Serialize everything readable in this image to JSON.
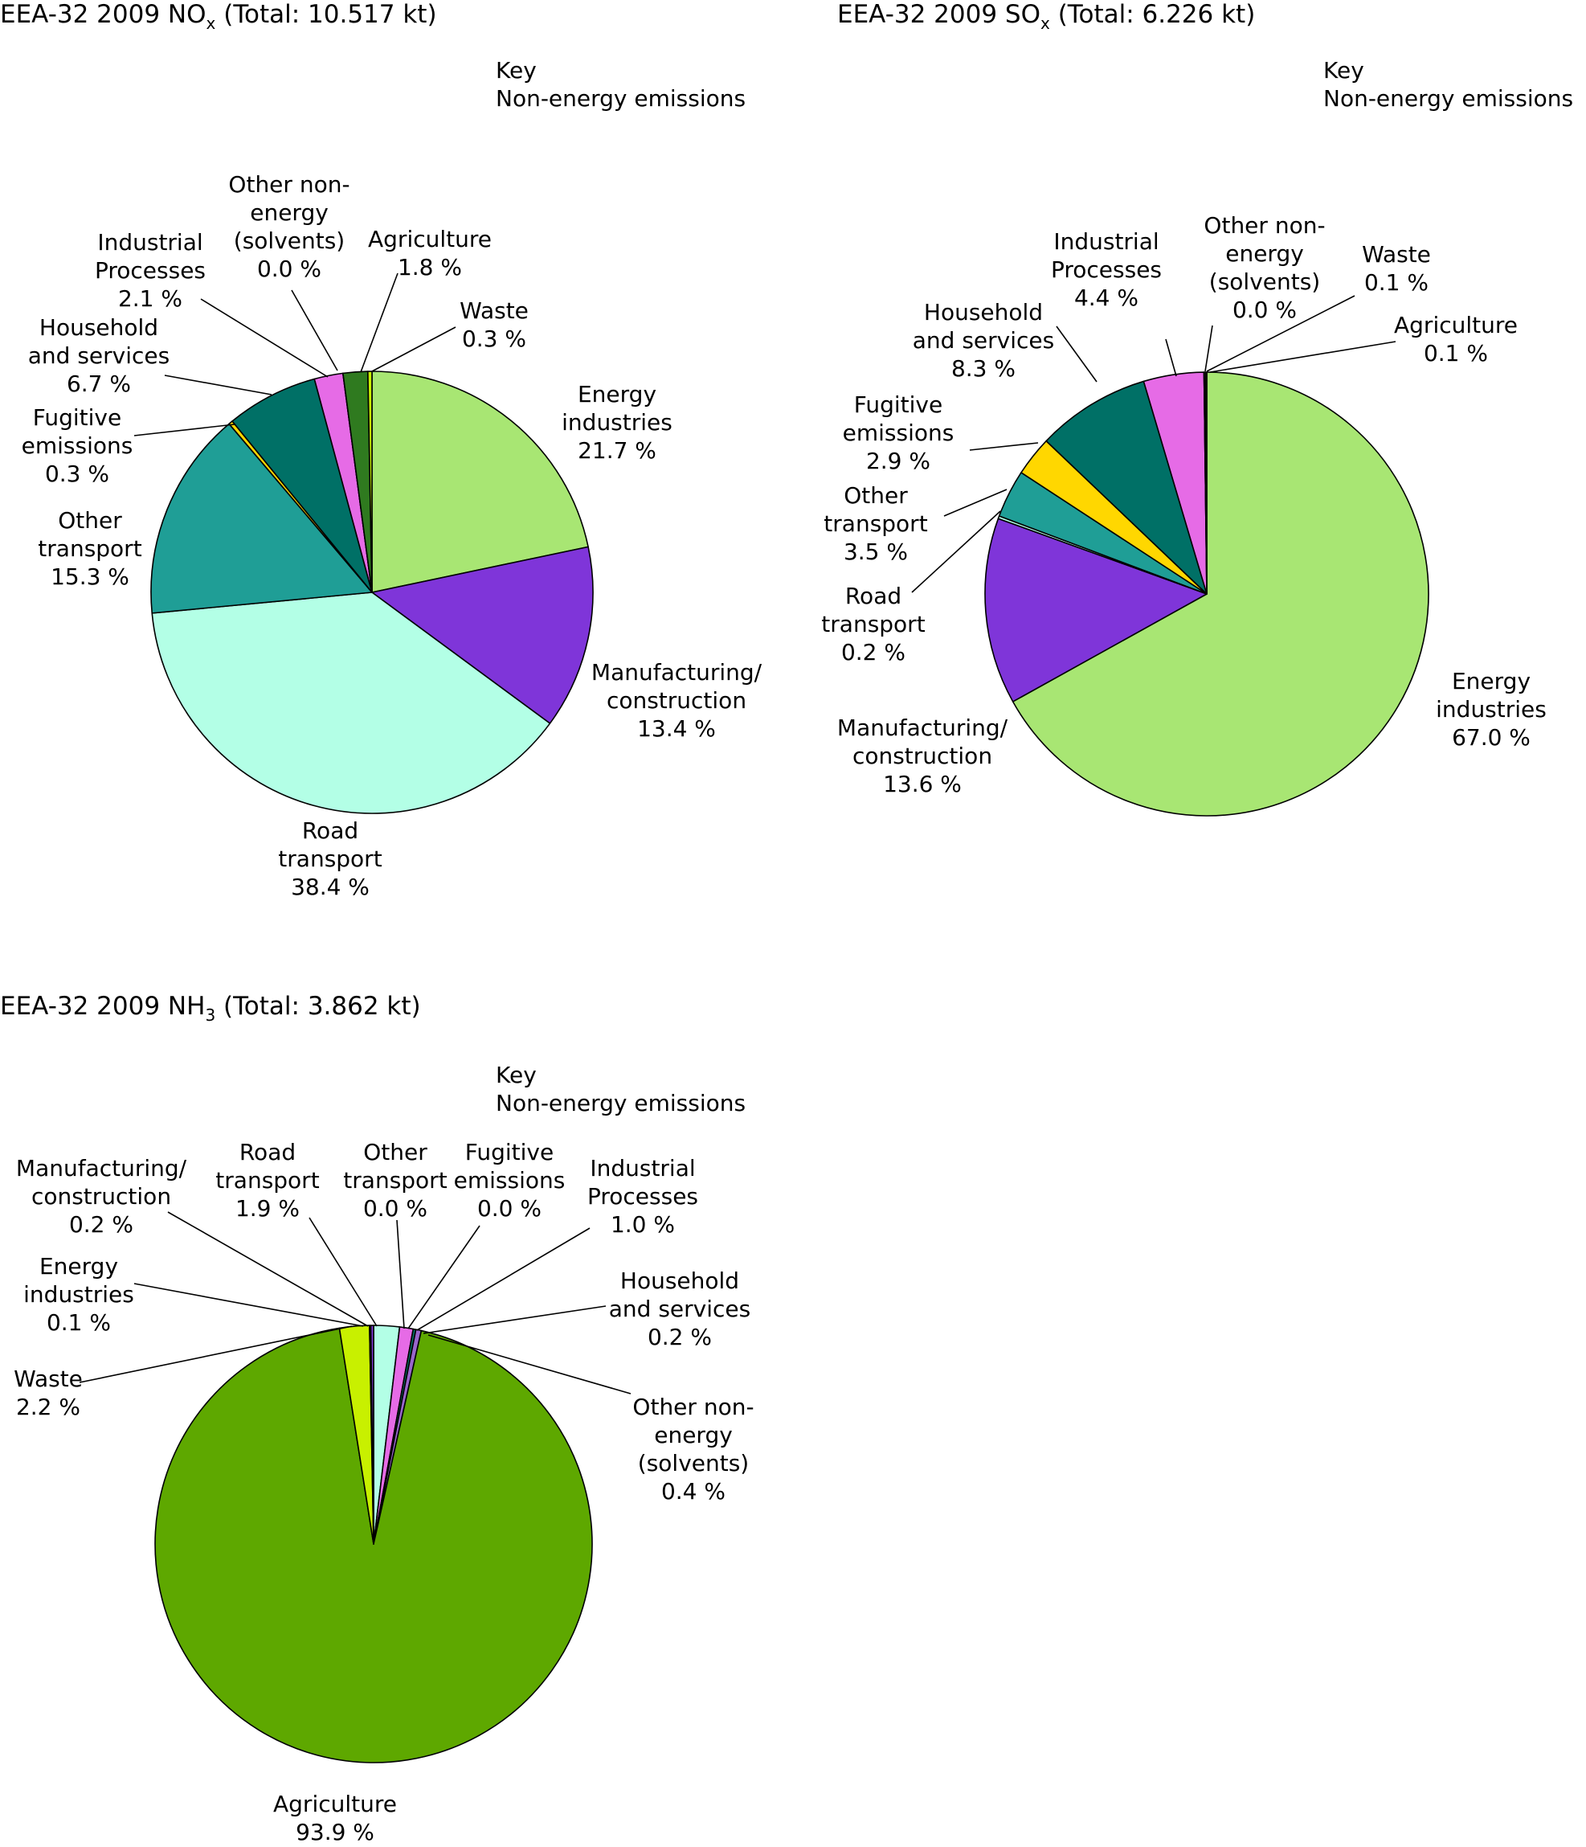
{
  "chart_data": [
    {
      "type": "pie",
      "title": "EEA-32 2009 NO",
      "title_subscript": "x",
      "title_total": "(Total: 10.517 kt)",
      "key_label": "Key",
      "key_text": "Non-energy emissions",
      "start": "12 o'clock, clockwise",
      "slices": [
        {
          "name": "Energy industries",
          "label": [
            "Energy",
            "industries"
          ],
          "value": 21.7,
          "pct": "21.7 %",
          "color": "#a8e673"
        },
        {
          "name": "Manufacturing/construction",
          "label": [
            "Manufacturing/",
            "construction"
          ],
          "value": 13.4,
          "pct": "13.4 %",
          "color": "#7f35d9"
        },
        {
          "name": "Road transport",
          "label": [
            "Road",
            "transport"
          ],
          "value": 38.4,
          "pct": "38.4 %",
          "color": "#b3ffe6"
        },
        {
          "name": "Other transport",
          "label": [
            "Other",
            "transport"
          ],
          "value": 15.3,
          "pct": "15.3 %",
          "color": "#1f9e96"
        },
        {
          "name": "Fugitive emissions",
          "label": [
            "Fugitive",
            "emissions"
          ],
          "value": 0.3,
          "pct": "0.3 %",
          "color": "#ffd700"
        },
        {
          "name": "Household and services",
          "label": [
            "Household",
            "and services"
          ],
          "value": 6.7,
          "pct": "6.7 %",
          "color": "#007066"
        },
        {
          "name": "Industrial Processes",
          "label": [
            "Industrial",
            "Processes"
          ],
          "value": 2.1,
          "pct": "2.1 %",
          "color": "#e66be6"
        },
        {
          "name": "Other non-energy (solvents)",
          "label": [
            "Other non-",
            "energy",
            "(solvents)"
          ],
          "value": 0.0,
          "pct": "0.0 %",
          "color": "#9966cc"
        },
        {
          "name": "Agriculture",
          "label": [
            "Agriculture"
          ],
          "value": 1.8,
          "pct": "1.8 %",
          "color": "#2f7a1f"
        },
        {
          "name": "Waste",
          "label": [
            "Waste"
          ],
          "value": 0.3,
          "pct": "0.3 %",
          "color": "#c8f000"
        }
      ]
    },
    {
      "type": "pie",
      "title": "EEA-32 2009 SO",
      "title_subscript": "x",
      "title_total": "(Total: 6.226 kt)",
      "key_label": "Key",
      "key_text": "Non-energy emissions",
      "start": "12 o'clock, clockwise",
      "slices": [
        {
          "name": "Energy industries",
          "label": [
            "Energy",
            "industries"
          ],
          "value": 67.0,
          "pct": "67.0 %",
          "color": "#a8e673"
        },
        {
          "name": "Manufacturing/construction",
          "label": [
            "Manufacturing/",
            "construction"
          ],
          "value": 13.6,
          "pct": "13.6 %",
          "color": "#7f35d9"
        },
        {
          "name": "Road transport",
          "label": [
            "Road",
            "transport"
          ],
          "value": 0.2,
          "pct": "0.2 %",
          "color": "#b3ffe6"
        },
        {
          "name": "Other transport",
          "label": [
            "Other",
            "transport"
          ],
          "value": 3.5,
          "pct": "3.5 %",
          "color": "#1f9e96"
        },
        {
          "name": "Fugitive emissions",
          "label": [
            "Fugitive",
            "emissions"
          ],
          "value": 2.9,
          "pct": "2.9 %",
          "color": "#ffd700"
        },
        {
          "name": "Household and services",
          "label": [
            "Household",
            "and services"
          ],
          "value": 8.3,
          "pct": "8.3 %",
          "color": "#007066"
        },
        {
          "name": "Industrial Processes",
          "label": [
            "Industrial",
            "Processes"
          ],
          "value": 4.4,
          "pct": "4.4 %",
          "color": "#e66be6"
        },
        {
          "name": "Other non-energy (solvents)",
          "label": [
            "Other non-",
            "energy",
            "(solvents)"
          ],
          "value": 0.0,
          "pct": "0.0 %",
          "color": "#9966cc"
        },
        {
          "name": "Waste",
          "label": [
            "Waste"
          ],
          "value": 0.1,
          "pct": "0.1 %",
          "color": "#c8f000"
        },
        {
          "name": "Agriculture",
          "label": [
            "Agriculture"
          ],
          "value": 0.1,
          "pct": "0.1 %",
          "color": "#2f7a1f"
        }
      ]
    },
    {
      "type": "pie",
      "title": "EEA-32 2009 NH",
      "title_subscript": "3",
      "title_total": "(Total: 3.862 kt)",
      "key_label": "Key",
      "key_text": "Non-energy emissions",
      "start": "12 o'clock, clockwise",
      "slices": [
        {
          "name": "Other transport",
          "label": [
            "Other",
            "transport"
          ],
          "value": 0.0,
          "pct": "0.0 %",
          "color": "#1f9e96"
        },
        {
          "name": "Fugitive emissions",
          "label": [
            "Fugitive",
            "emissions"
          ],
          "value": 0.0,
          "pct": "0.0 %",
          "color": "#ffd700"
        },
        {
          "name": "Road transport",
          "label": [
            "Road",
            "transport"
          ],
          "value": 1.9,
          "pct": "1.9 %",
          "color": "#b3ffe6"
        },
        {
          "name": "Industrial Processes",
          "label": [
            "Industrial",
            "Processes"
          ],
          "value": 1.0,
          "pct": "1.0 %",
          "color": "#e66be6"
        },
        {
          "name": "Household and services",
          "label": [
            "Household",
            "and services"
          ],
          "value": 0.2,
          "pct": "0.2 %",
          "color": "#007066"
        },
        {
          "name": "Other non-energy (solvents)",
          "label": [
            "Other non-",
            "energy",
            "(solvents)"
          ],
          "value": 0.4,
          "pct": "0.4 %",
          "color": "#9966cc"
        },
        {
          "name": "Agriculture",
          "label": [
            "Agriculture"
          ],
          "value": 93.9,
          "pct": "93.9 %",
          "color": "#5ea800"
        },
        {
          "name": "Waste",
          "label": [
            "Waste"
          ],
          "value": 2.2,
          "pct": "2.2 %",
          "color": "#c8f000"
        },
        {
          "name": "Energy industries",
          "label": [
            "Energy",
            "industries"
          ],
          "value": 0.1,
          "pct": "0.1 %",
          "color": "#a8e673"
        },
        {
          "name": "Manufacturing/construction",
          "label": [
            "Manufacturing/",
            "construction"
          ],
          "value": 0.2,
          "pct": "0.2 %",
          "color": "#7f35d9"
        }
      ]
    }
  ]
}
